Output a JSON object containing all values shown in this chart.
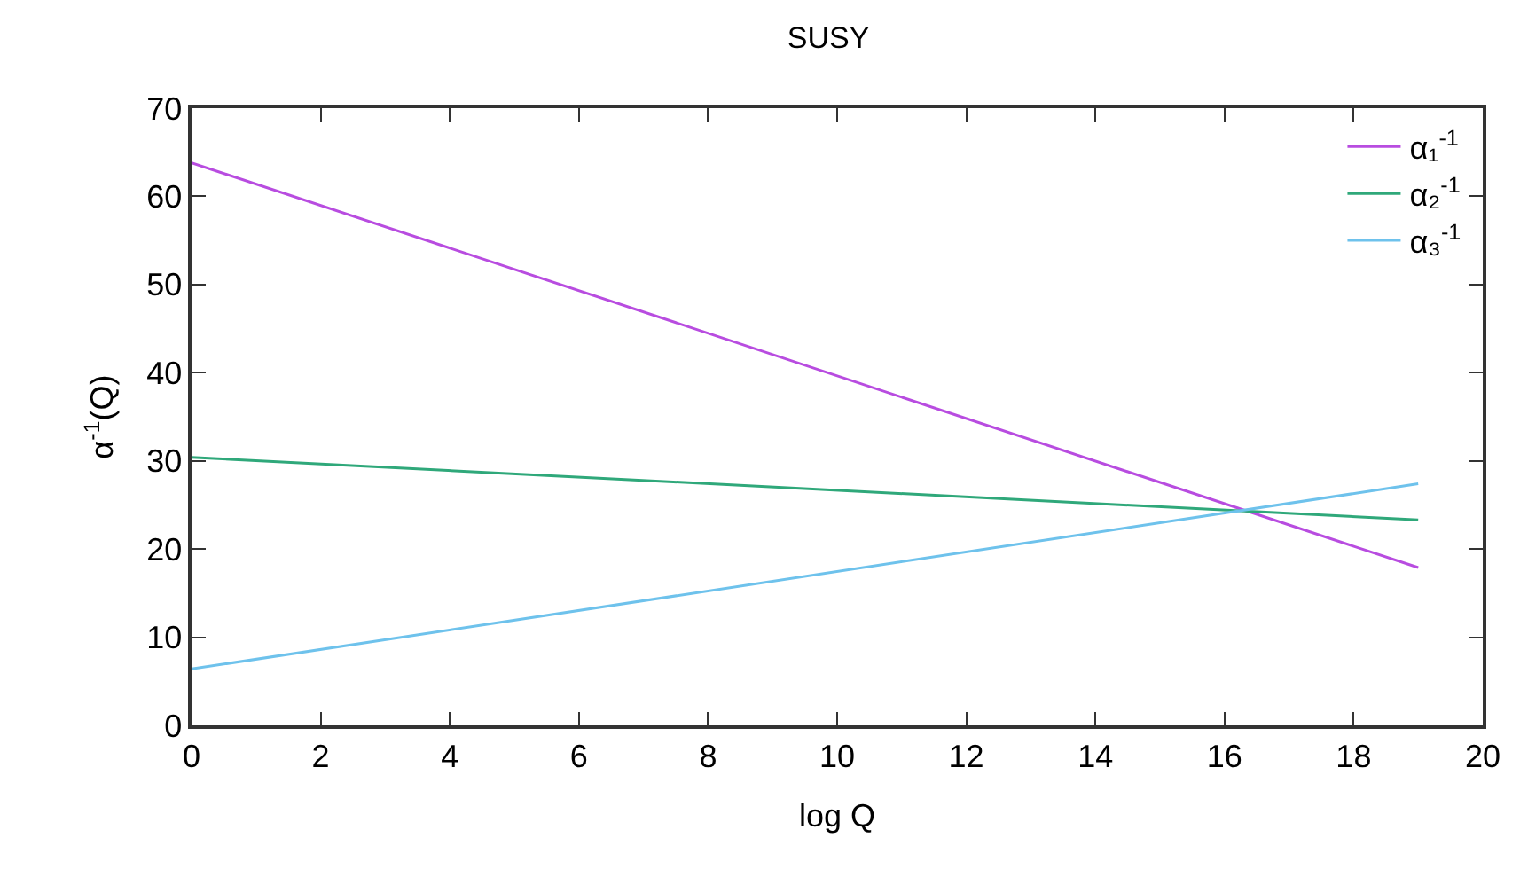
{
  "chart_data": {
    "type": "line",
    "title": "SUSY",
    "xlabel": "log Q",
    "ylabel": "α$^{-1}$(Q)",
    "x": [
      0,
      19
    ],
    "series": [
      {
        "name": "α₁$^{-1}$",
        "color": "#b84ce0",
        "values": [
          63.8,
          17.9
        ]
      },
      {
        "name": "α₂$^{-1}$",
        "color": "#2fa87a",
        "values": [
          30.4,
          23.3
        ]
      },
      {
        "name": "α₃$^{-1}$",
        "color": "#6ec2ec",
        "values": [
          6.4,
          27.4
        ]
      }
    ],
    "xlim": [
      0,
      20
    ],
    "xticks": [
      0,
      2,
      4,
      6,
      8,
      10,
      12,
      14,
      16,
      18,
      20
    ],
    "ylim": [
      0,
      70
    ],
    "yticks": [
      0,
      10,
      20,
      30,
      40,
      50,
      60,
      70
    ],
    "grid": false,
    "legend": "top right",
    "marker": "none",
    "line_style": "solid"
  }
}
